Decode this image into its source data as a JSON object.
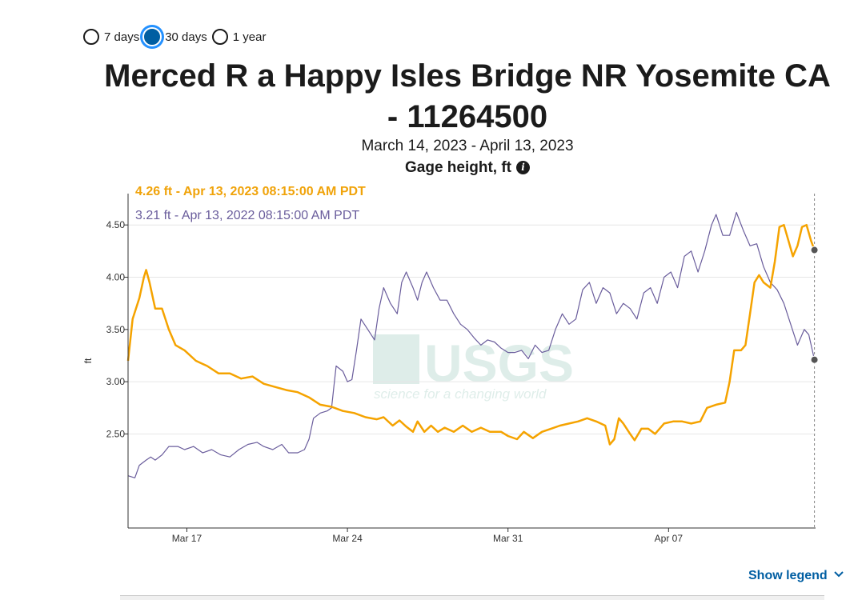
{
  "period_options": [
    {
      "label": "7 days",
      "selected": false
    },
    {
      "label": "30 days",
      "selected": true
    },
    {
      "label": "1 year",
      "selected": false
    }
  ],
  "title_line1": "Merced R a Happy Isles Bridge NR Yosemite CA",
  "title_line2": "- 11264500",
  "date_range": "March 14, 2023 - April 13, 2023",
  "parameter": "Gage height, ft",
  "info_glyph": "i",
  "current_point_label": "4.26 ft - Apr 13, 2023 08:15:00 AM PDT",
  "previous_point_label": "3.21 ft - Apr 13, 2022 08:15:00 AM PDT",
  "watermark": {
    "text": "USGS",
    "tagline": "science for a changing world"
  },
  "show_legend_label": "Show legend",
  "colors": {
    "current": "#f5a300",
    "previous": "#6a5d9c",
    "grid": "#e6e6e6",
    "axis": "#333333",
    "accent": "#005ea2"
  },
  "chart_data": {
    "type": "line",
    "ylabel": "ft",
    "ylim": [
      1.6,
      4.8
    ],
    "yticks": [
      2.5,
      3.0,
      3.5,
      4.0,
      4.5
    ],
    "ytick_labels": [
      "2.50",
      "3.00",
      "3.50",
      "4.00",
      "4.50"
    ],
    "xlim": [
      0,
      30.4
    ],
    "xticks": [
      {
        "x": 2.6,
        "label": "Mar 17"
      },
      {
        "x": 9.7,
        "label": "Mar 24"
      },
      {
        "x": 16.8,
        "label": "Mar 31"
      },
      {
        "x": 23.9,
        "label": "Apr 07"
      }
    ],
    "grid": true,
    "cursor_x": 30.35,
    "series": [
      {
        "key": "current",
        "points": [
          [
            0,
            3.2
          ],
          [
            0.2,
            3.6
          ],
          [
            0.5,
            3.8
          ],
          [
            0.7,
            4.0
          ],
          [
            0.8,
            4.07
          ],
          [
            0.95,
            3.95
          ],
          [
            1.2,
            3.7
          ],
          [
            1.5,
            3.7
          ],
          [
            1.8,
            3.5
          ],
          [
            2.1,
            3.35
          ],
          [
            2.5,
            3.3
          ],
          [
            3.0,
            3.2
          ],
          [
            3.5,
            3.15
          ],
          [
            4.0,
            3.08
          ],
          [
            4.5,
            3.08
          ],
          [
            5.0,
            3.03
          ],
          [
            5.5,
            3.05
          ],
          [
            6.0,
            2.98
          ],
          [
            6.5,
            2.95
          ],
          [
            7.0,
            2.92
          ],
          [
            7.5,
            2.9
          ],
          [
            8.0,
            2.85
          ],
          [
            8.5,
            2.78
          ],
          [
            9.0,
            2.76
          ],
          [
            9.5,
            2.72
          ],
          [
            10.0,
            2.7
          ],
          [
            10.5,
            2.66
          ],
          [
            11.0,
            2.64
          ],
          [
            11.3,
            2.66
          ],
          [
            11.7,
            2.58
          ],
          [
            12.0,
            2.63
          ],
          [
            12.3,
            2.57
          ],
          [
            12.6,
            2.52
          ],
          [
            12.8,
            2.62
          ],
          [
            13.1,
            2.52
          ],
          [
            13.4,
            2.58
          ],
          [
            13.7,
            2.52
          ],
          [
            14.0,
            2.56
          ],
          [
            14.4,
            2.52
          ],
          [
            14.8,
            2.58
          ],
          [
            15.2,
            2.52
          ],
          [
            15.6,
            2.56
          ],
          [
            16.0,
            2.52
          ],
          [
            16.5,
            2.52
          ],
          [
            16.8,
            2.48
          ],
          [
            17.2,
            2.45
          ],
          [
            17.5,
            2.52
          ],
          [
            17.9,
            2.46
          ],
          [
            18.3,
            2.52
          ],
          [
            18.7,
            2.55
          ],
          [
            19.1,
            2.58
          ],
          [
            19.5,
            2.6
          ],
          [
            19.9,
            2.62
          ],
          [
            20.3,
            2.65
          ],
          [
            20.7,
            2.62
          ],
          [
            21.1,
            2.58
          ],
          [
            21.3,
            2.4
          ],
          [
            21.5,
            2.45
          ],
          [
            21.7,
            2.65
          ],
          [
            21.9,
            2.6
          ],
          [
            22.2,
            2.5
          ],
          [
            22.4,
            2.44
          ],
          [
            22.7,
            2.55
          ],
          [
            23.0,
            2.55
          ],
          [
            23.3,
            2.5
          ],
          [
            23.7,
            2.6
          ],
          [
            24.1,
            2.62
          ],
          [
            24.5,
            2.62
          ],
          [
            24.9,
            2.6
          ],
          [
            25.3,
            2.62
          ],
          [
            25.6,
            2.75
          ],
          [
            26.0,
            2.78
          ],
          [
            26.4,
            2.8
          ],
          [
            26.6,
            3.0
          ],
          [
            26.8,
            3.3
          ],
          [
            27.1,
            3.3
          ],
          [
            27.3,
            3.35
          ],
          [
            27.5,
            3.65
          ],
          [
            27.7,
            3.95
          ],
          [
            27.9,
            4.02
          ],
          [
            28.1,
            3.95
          ],
          [
            28.4,
            3.9
          ],
          [
            28.6,
            4.15
          ],
          [
            28.8,
            4.48
          ],
          [
            29.0,
            4.5
          ],
          [
            29.2,
            4.35
          ],
          [
            29.4,
            4.2
          ],
          [
            29.6,
            4.3
          ],
          [
            29.8,
            4.48
          ],
          [
            30.0,
            4.5
          ],
          [
            30.2,
            4.35
          ],
          [
            30.35,
            4.26
          ]
        ]
      },
      {
        "key": "previous",
        "points": [
          [
            0,
            2.1
          ],
          [
            0.3,
            2.08
          ],
          [
            0.5,
            2.2
          ],
          [
            0.8,
            2.25
          ],
          [
            1.0,
            2.28
          ],
          [
            1.2,
            2.25
          ],
          [
            1.5,
            2.3
          ],
          [
            1.8,
            2.38
          ],
          [
            2.2,
            2.38
          ],
          [
            2.5,
            2.35
          ],
          [
            2.9,
            2.38
          ],
          [
            3.3,
            2.32
          ],
          [
            3.7,
            2.35
          ],
          [
            4.1,
            2.3
          ],
          [
            4.5,
            2.28
          ],
          [
            4.9,
            2.35
          ],
          [
            5.3,
            2.4
          ],
          [
            5.7,
            2.42
          ],
          [
            6.0,
            2.38
          ],
          [
            6.4,
            2.35
          ],
          [
            6.8,
            2.4
          ],
          [
            7.1,
            2.32
          ],
          [
            7.5,
            2.32
          ],
          [
            7.8,
            2.35
          ],
          [
            8.0,
            2.45
          ],
          [
            8.2,
            2.65
          ],
          [
            8.5,
            2.7
          ],
          [
            8.8,
            2.72
          ],
          [
            9.0,
            2.75
          ],
          [
            9.1,
            2.95
          ],
          [
            9.2,
            3.15
          ],
          [
            9.5,
            3.1
          ],
          [
            9.7,
            3.0
          ],
          [
            9.9,
            3.02
          ],
          [
            10.1,
            3.3
          ],
          [
            10.3,
            3.6
          ],
          [
            10.6,
            3.5
          ],
          [
            10.9,
            3.4
          ],
          [
            11.1,
            3.7
          ],
          [
            11.3,
            3.9
          ],
          [
            11.6,
            3.75
          ],
          [
            11.9,
            3.65
          ],
          [
            12.1,
            3.95
          ],
          [
            12.3,
            4.05
          ],
          [
            12.6,
            3.9
          ],
          [
            12.8,
            3.78
          ],
          [
            13.0,
            3.95
          ],
          [
            13.2,
            4.05
          ],
          [
            13.5,
            3.9
          ],
          [
            13.8,
            3.78
          ],
          [
            14.1,
            3.78
          ],
          [
            14.4,
            3.65
          ],
          [
            14.7,
            3.55
          ],
          [
            15.0,
            3.5
          ],
          [
            15.3,
            3.42
          ],
          [
            15.6,
            3.35
          ],
          [
            15.9,
            3.4
          ],
          [
            16.2,
            3.38
          ],
          [
            16.5,
            3.32
          ],
          [
            16.8,
            3.28
          ],
          [
            17.1,
            3.28
          ],
          [
            17.4,
            3.3
          ],
          [
            17.7,
            3.22
          ],
          [
            18.0,
            3.35
          ],
          [
            18.3,
            3.28
          ],
          [
            18.6,
            3.3
          ],
          [
            18.9,
            3.5
          ],
          [
            19.2,
            3.65
          ],
          [
            19.5,
            3.55
          ],
          [
            19.8,
            3.6
          ],
          [
            20.1,
            3.88
          ],
          [
            20.4,
            3.95
          ],
          [
            20.7,
            3.75
          ],
          [
            21.0,
            3.9
          ],
          [
            21.3,
            3.85
          ],
          [
            21.6,
            3.65
          ],
          [
            21.9,
            3.75
          ],
          [
            22.2,
            3.7
          ],
          [
            22.5,
            3.6
          ],
          [
            22.8,
            3.85
          ],
          [
            23.1,
            3.9
          ],
          [
            23.4,
            3.75
          ],
          [
            23.7,
            4.0
          ],
          [
            24.0,
            4.05
          ],
          [
            24.3,
            3.9
          ],
          [
            24.6,
            4.2
          ],
          [
            24.9,
            4.25
          ],
          [
            25.2,
            4.05
          ],
          [
            25.5,
            4.25
          ],
          [
            25.8,
            4.5
          ],
          [
            26.0,
            4.6
          ],
          [
            26.3,
            4.4
          ],
          [
            26.6,
            4.4
          ],
          [
            26.9,
            4.62
          ],
          [
            27.2,
            4.45
          ],
          [
            27.5,
            4.3
          ],
          [
            27.8,
            4.32
          ],
          [
            28.1,
            4.1
          ],
          [
            28.4,
            3.95
          ],
          [
            28.7,
            3.88
          ],
          [
            29.0,
            3.75
          ],
          [
            29.3,
            3.55
          ],
          [
            29.6,
            3.35
          ],
          [
            29.9,
            3.5
          ],
          [
            30.1,
            3.45
          ],
          [
            30.35,
            3.21
          ]
        ]
      }
    ]
  }
}
